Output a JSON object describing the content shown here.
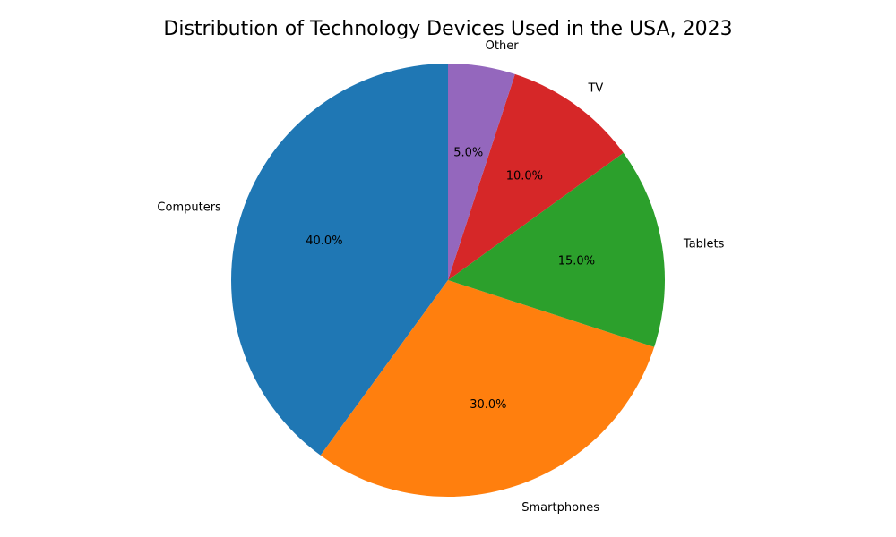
{
  "chart_data": {
    "type": "pie",
    "title": "Distribution of Technology Devices Used in the USA, 2023",
    "categories": [
      "Computers",
      "Smartphones",
      "Tablets",
      "TV",
      "Other"
    ],
    "values": [
      40,
      30,
      15,
      10,
      5
    ],
    "percent_labels": [
      "40.0%",
      "30.0%",
      "15.0%",
      "10.0%",
      "5.0%"
    ],
    "colors": [
      "#1f77b4",
      "#ff7f0e",
      "#2ca02c",
      "#d62728",
      "#9467bd"
    ],
    "start_angle_deg": 90,
    "direction": "counterclockwise"
  }
}
